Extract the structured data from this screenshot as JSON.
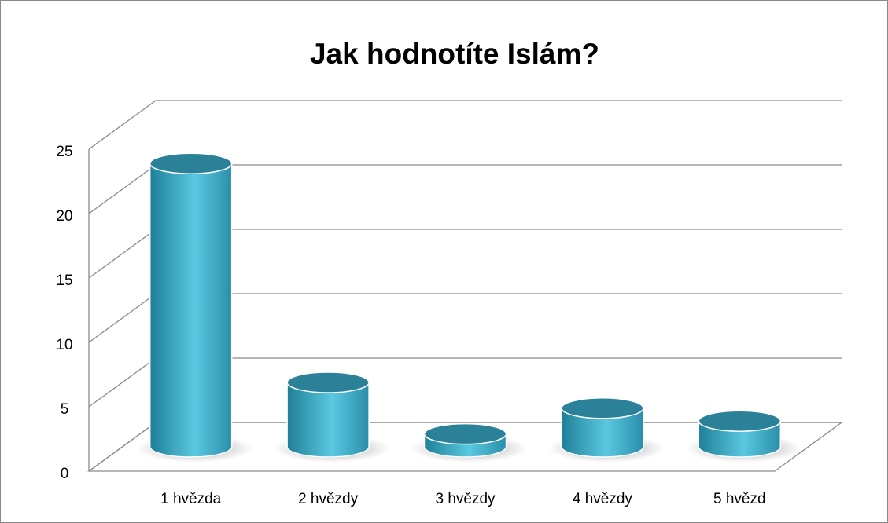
{
  "chart_data": {
    "type": "bar3d",
    "title": "Jak hodnotíte Islám?",
    "categories": [
      "1 hvězda",
      "2 hvězdy",
      "3 hvězdy",
      "4 hvězdy",
      "5 hvězd"
    ],
    "values": [
      22,
      5,
      1,
      3,
      2
    ],
    "color": "#3aa9c6",
    "ylim": [
      0,
      25
    ],
    "yticks": [
      0,
      5,
      10,
      15,
      20,
      25
    ],
    "grid": true
  }
}
